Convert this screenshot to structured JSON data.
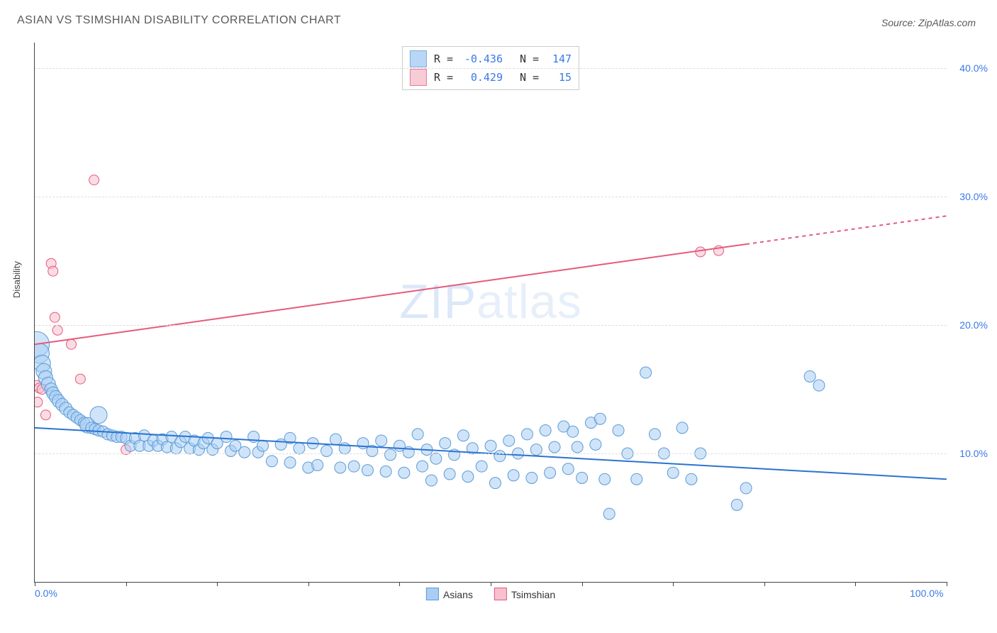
{
  "title": "ASIAN VS TSIMSHIAN DISABILITY CORRELATION CHART",
  "source": "Source: ZipAtlas.com",
  "ylabel": "Disability",
  "watermark_a": "ZIP",
  "watermark_b": "atlas",
  "chart": {
    "type": "scatter",
    "xlim": [
      0,
      100
    ],
    "ylim": [
      0,
      42
    ],
    "x_ticks_percent": [
      0,
      10,
      20,
      30,
      40,
      50,
      60,
      70,
      80,
      90,
      100
    ],
    "x_tick_labels": {
      "0": "0.0%",
      "100": "100.0%"
    },
    "y_gridlines": [
      10,
      20,
      30,
      40
    ],
    "y_tick_labels": {
      "10": "10.0%",
      "20": "20.0%",
      "30": "30.0%",
      "40": "40.0%"
    },
    "background_color": "#ffffff",
    "grid_color": "#dddddd",
    "axis_color": "#444444",
    "series": {
      "asians": {
        "label": "Asians",
        "fill_color": "#a9cdf4",
        "stroke_color": "#5b9bd5",
        "fill_opacity": 0.55,
        "trend": {
          "x1": 0,
          "y1": 12.0,
          "x2": 100,
          "y2": 8.0,
          "color": "#2b73d1",
          "width": 2
        },
        "R": "-0.436",
        "N": "147",
        "points": [
          {
            "x": 0.2,
            "y": 18.5,
            "r": 18
          },
          {
            "x": 0.5,
            "y": 17.8,
            "r": 14
          },
          {
            "x": 0.8,
            "y": 17.0,
            "r": 12
          },
          {
            "x": 1.0,
            "y": 16.4,
            "r": 11
          },
          {
            "x": 1.2,
            "y": 15.9,
            "r": 10
          },
          {
            "x": 1.5,
            "y": 15.4,
            "r": 10
          },
          {
            "x": 1.8,
            "y": 15.0,
            "r": 9
          },
          {
            "x": 2.0,
            "y": 14.7,
            "r": 9
          },
          {
            "x": 2.3,
            "y": 14.4,
            "r": 9
          },
          {
            "x": 2.6,
            "y": 14.1,
            "r": 9
          },
          {
            "x": 3.0,
            "y": 13.8,
            "r": 9
          },
          {
            "x": 3.4,
            "y": 13.5,
            "r": 9
          },
          {
            "x": 3.8,
            "y": 13.2,
            "r": 8
          },
          {
            "x": 4.2,
            "y": 13.0,
            "r": 8
          },
          {
            "x": 4.6,
            "y": 12.8,
            "r": 8
          },
          {
            "x": 5.0,
            "y": 12.6,
            "r": 8
          },
          {
            "x": 5.4,
            "y": 12.4,
            "r": 8
          },
          {
            "x": 5.8,
            "y": 12.2,
            "r": 11
          },
          {
            "x": 6.2,
            "y": 12.0,
            "r": 8
          },
          {
            "x": 6.6,
            "y": 11.9,
            "r": 8
          },
          {
            "x": 7.0,
            "y": 13.0,
            "r": 12
          },
          {
            "x": 7.0,
            "y": 11.8,
            "r": 8
          },
          {
            "x": 7.5,
            "y": 11.7,
            "r": 8
          },
          {
            "x": 8.0,
            "y": 11.5,
            "r": 8
          },
          {
            "x": 8.5,
            "y": 11.4,
            "r": 8
          },
          {
            "x": 9.0,
            "y": 11.3,
            "r": 8
          },
          {
            "x": 9.5,
            "y": 11.3,
            "r": 8
          },
          {
            "x": 10.0,
            "y": 11.2,
            "r": 8
          },
          {
            "x": 10.5,
            "y": 10.6,
            "r": 8
          },
          {
            "x": 11.0,
            "y": 11.2,
            "r": 8
          },
          {
            "x": 11.5,
            "y": 10.6,
            "r": 8
          },
          {
            "x": 12.0,
            "y": 11.4,
            "r": 8
          },
          {
            "x": 12.5,
            "y": 10.6,
            "r": 8
          },
          {
            "x": 13.0,
            "y": 11.0,
            "r": 8
          },
          {
            "x": 13.5,
            "y": 10.6,
            "r": 8
          },
          {
            "x": 14.0,
            "y": 11.1,
            "r": 8
          },
          {
            "x": 14.5,
            "y": 10.5,
            "r": 8
          },
          {
            "x": 15.0,
            "y": 11.3,
            "r": 8
          },
          {
            "x": 15.5,
            "y": 10.4,
            "r": 8
          },
          {
            "x": 16.0,
            "y": 10.9,
            "r": 8
          },
          {
            "x": 16.5,
            "y": 11.3,
            "r": 8
          },
          {
            "x": 17.0,
            "y": 10.4,
            "r": 8
          },
          {
            "x": 17.5,
            "y": 11.0,
            "r": 8
          },
          {
            "x": 18.0,
            "y": 10.3,
            "r": 8
          },
          {
            "x": 18.5,
            "y": 10.8,
            "r": 8
          },
          {
            "x": 19.0,
            "y": 11.2,
            "r": 8
          },
          {
            "x": 19.5,
            "y": 10.3,
            "r": 8
          },
          {
            "x": 20.0,
            "y": 10.8,
            "r": 8
          },
          {
            "x": 21.0,
            "y": 11.3,
            "r": 8
          },
          {
            "x": 21.5,
            "y": 10.2,
            "r": 8
          },
          {
            "x": 22.0,
            "y": 10.6,
            "r": 8
          },
          {
            "x": 23.0,
            "y": 10.1,
            "r": 8
          },
          {
            "x": 24.0,
            "y": 11.3,
            "r": 8
          },
          {
            "x": 24.5,
            "y": 10.1,
            "r": 8
          },
          {
            "x": 25.0,
            "y": 10.6,
            "r": 8
          },
          {
            "x": 26.0,
            "y": 9.4,
            "r": 8
          },
          {
            "x": 27.0,
            "y": 10.7,
            "r": 8
          },
          {
            "x": 28.0,
            "y": 11.2,
            "r": 8
          },
          {
            "x": 28.0,
            "y": 9.3,
            "r": 8
          },
          {
            "x": 29.0,
            "y": 10.4,
            "r": 8
          },
          {
            "x": 30.0,
            "y": 8.9,
            "r": 8
          },
          {
            "x": 30.5,
            "y": 10.8,
            "r": 8
          },
          {
            "x": 31.0,
            "y": 9.1,
            "r": 8
          },
          {
            "x": 32.0,
            "y": 10.2,
            "r": 8
          },
          {
            "x": 33.0,
            "y": 11.1,
            "r": 8
          },
          {
            "x": 33.5,
            "y": 8.9,
            "r": 8
          },
          {
            "x": 34.0,
            "y": 10.4,
            "r": 8
          },
          {
            "x": 35.0,
            "y": 9.0,
            "r": 8
          },
          {
            "x": 36.0,
            "y": 10.8,
            "r": 8
          },
          {
            "x": 36.5,
            "y": 8.7,
            "r": 8
          },
          {
            "x": 37.0,
            "y": 10.2,
            "r": 8
          },
          {
            "x": 38.0,
            "y": 11.0,
            "r": 8
          },
          {
            "x": 38.5,
            "y": 8.6,
            "r": 8
          },
          {
            "x": 39.0,
            "y": 9.9,
            "r": 8
          },
          {
            "x": 40.0,
            "y": 10.6,
            "r": 8
          },
          {
            "x": 40.5,
            "y": 8.5,
            "r": 8
          },
          {
            "x": 41.0,
            "y": 10.1,
            "r": 8
          },
          {
            "x": 42.0,
            "y": 11.5,
            "r": 8
          },
          {
            "x": 42.5,
            "y": 9.0,
            "r": 8
          },
          {
            "x": 43.0,
            "y": 10.3,
            "r": 8
          },
          {
            "x": 43.5,
            "y": 7.9,
            "r": 8
          },
          {
            "x": 44.0,
            "y": 9.6,
            "r": 8
          },
          {
            "x": 45.0,
            "y": 10.8,
            "r": 8
          },
          {
            "x": 45.5,
            "y": 8.4,
            "r": 8
          },
          {
            "x": 46.0,
            "y": 9.9,
            "r": 8
          },
          {
            "x": 47.0,
            "y": 11.4,
            "r": 8
          },
          {
            "x": 47.5,
            "y": 8.2,
            "r": 8
          },
          {
            "x": 48.0,
            "y": 10.4,
            "r": 8
          },
          {
            "x": 49.0,
            "y": 9.0,
            "r": 8
          },
          {
            "x": 50.0,
            "y": 10.6,
            "r": 8
          },
          {
            "x": 50.5,
            "y": 7.7,
            "r": 8
          },
          {
            "x": 51.0,
            "y": 9.8,
            "r": 8
          },
          {
            "x": 52.0,
            "y": 11.0,
            "r": 8
          },
          {
            "x": 52.5,
            "y": 8.3,
            "r": 8
          },
          {
            "x": 53.0,
            "y": 10.0,
            "r": 8
          },
          {
            "x": 54.0,
            "y": 11.5,
            "r": 8
          },
          {
            "x": 54.5,
            "y": 8.1,
            "r": 8
          },
          {
            "x": 55.0,
            "y": 10.3,
            "r": 8
          },
          {
            "x": 56.0,
            "y": 11.8,
            "r": 8
          },
          {
            "x": 56.5,
            "y": 8.5,
            "r": 8
          },
          {
            "x": 57.0,
            "y": 10.5,
            "r": 8
          },
          {
            "x": 58.0,
            "y": 12.1,
            "r": 8
          },
          {
            "x": 58.5,
            "y": 8.8,
            "r": 8
          },
          {
            "x": 59.0,
            "y": 11.7,
            "r": 8
          },
          {
            "x": 59.5,
            "y": 10.5,
            "r": 8
          },
          {
            "x": 60.0,
            "y": 8.1,
            "r": 8
          },
          {
            "x": 61.0,
            "y": 12.4,
            "r": 8
          },
          {
            "x": 61.5,
            "y": 10.7,
            "r": 8
          },
          {
            "x": 62.0,
            "y": 12.7,
            "r": 8
          },
          {
            "x": 62.5,
            "y": 8.0,
            "r": 8
          },
          {
            "x": 63.0,
            "y": 5.3,
            "r": 8
          },
          {
            "x": 64.0,
            "y": 11.8,
            "r": 8
          },
          {
            "x": 65.0,
            "y": 10.0,
            "r": 8
          },
          {
            "x": 66.0,
            "y": 8.0,
            "r": 8
          },
          {
            "x": 67.0,
            "y": 16.3,
            "r": 8
          },
          {
            "x": 68.0,
            "y": 11.5,
            "r": 8
          },
          {
            "x": 69.0,
            "y": 10.0,
            "r": 8
          },
          {
            "x": 70.0,
            "y": 8.5,
            "r": 8
          },
          {
            "x": 71.0,
            "y": 12.0,
            "r": 8
          },
          {
            "x": 72.0,
            "y": 8.0,
            "r": 8
          },
          {
            "x": 73.0,
            "y": 10.0,
            "r": 8
          },
          {
            "x": 77.0,
            "y": 6.0,
            "r": 8
          },
          {
            "x": 78.0,
            "y": 7.3,
            "r": 8
          },
          {
            "x": 85.0,
            "y": 16.0,
            "r": 8
          },
          {
            "x": 86.0,
            "y": 15.3,
            "r": 8
          }
        ]
      },
      "tsimshian": {
        "label": "Tsimshian",
        "fill_color": "#f6c0ce",
        "stroke_color": "#e65a7c",
        "fill_opacity": 0.55,
        "trend": {
          "x1": 0,
          "y1": 18.5,
          "x2_solid": 78,
          "y2_solid": 26.3,
          "x2": 100,
          "y2": 28.5,
          "color": "#e65a7c",
          "width": 2
        },
        "R": "0.429",
        "N": "15",
        "points": [
          {
            "x": 0.2,
            "y": 15.3,
            "r": 7
          },
          {
            "x": 0.3,
            "y": 14.0,
            "r": 7
          },
          {
            "x": 0.5,
            "y": 15.1,
            "r": 7
          },
          {
            "x": 0.8,
            "y": 15.0,
            "r": 7
          },
          {
            "x": 1.2,
            "y": 13.0,
            "r": 7
          },
          {
            "x": 1.8,
            "y": 24.8,
            "r": 7
          },
          {
            "x": 2.0,
            "y": 24.2,
            "r": 7
          },
          {
            "x": 2.2,
            "y": 20.6,
            "r": 7
          },
          {
            "x": 2.5,
            "y": 19.6,
            "r": 7
          },
          {
            "x": 4.0,
            "y": 18.5,
            "r": 7
          },
          {
            "x": 5.0,
            "y": 15.8,
            "r": 7
          },
          {
            "x": 6.5,
            "y": 31.3,
            "r": 7
          },
          {
            "x": 10.0,
            "y": 10.3,
            "r": 7
          },
          {
            "x": 73.0,
            "y": 25.7,
            "r": 7
          },
          {
            "x": 75.0,
            "y": 25.8,
            "r": 7
          }
        ]
      }
    }
  },
  "legend_top": [
    {
      "swatch": "asians",
      "r_label": "R =",
      "r_val": "-0.436",
      "n_label": "N =",
      "n_val": "147"
    },
    {
      "swatch": "tsimshian",
      "r_label": "R =",
      "r_val": "0.429",
      "n_label": "N =",
      "n_val": "15"
    }
  ],
  "legend_bottom": [
    {
      "swatch": "asians",
      "label": "Asians"
    },
    {
      "swatch": "tsimshian",
      "label": "Tsimshian"
    }
  ]
}
